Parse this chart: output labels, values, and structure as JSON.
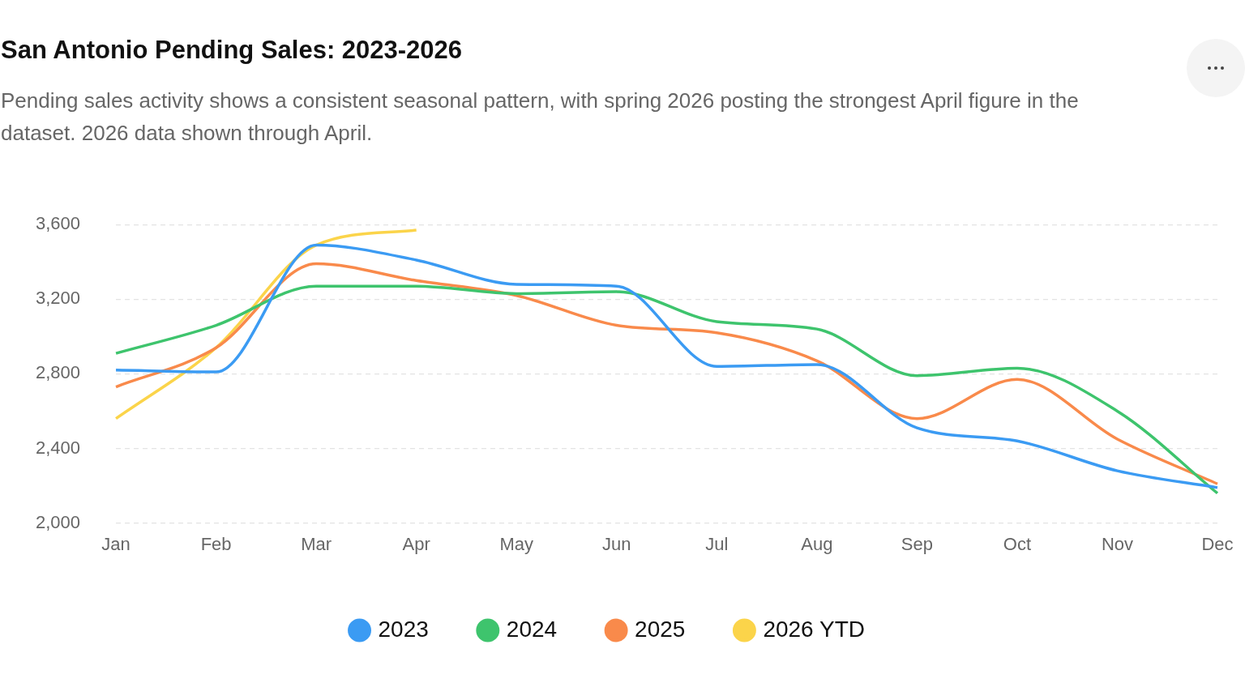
{
  "chart_data": {
    "type": "line",
    "title": "San Antonio Pending Sales: 2023-2026",
    "subtitle": "Pending sales activity shows a consistent seasonal pattern, with spring 2026 posting the strongest April figure in the dataset. 2026 data shown through April.",
    "categories": [
      "Jan",
      "Feb",
      "Mar",
      "Apr",
      "May",
      "Jun",
      "Jul",
      "Aug",
      "Sep",
      "Oct",
      "Nov",
      "Dec"
    ],
    "series": [
      {
        "name": "2023",
        "color": "#3b9bf3",
        "values": [
          2820,
          2810,
          3490,
          3410,
          3280,
          3270,
          2840,
          2850,
          2510,
          2440,
          2280,
          2190
        ]
      },
      {
        "name": "2024",
        "color": "#3ec46d",
        "values": [
          2910,
          3060,
          3270,
          3270,
          3230,
          3240,
          3080,
          3040,
          2790,
          2830,
          2600,
          2160
        ]
      },
      {
        "name": "2025",
        "color": "#f98a4b",
        "values": [
          2730,
          2940,
          3390,
          3300,
          3220,
          3060,
          3020,
          2870,
          2560,
          2770,
          2450,
          2210
        ]
      },
      {
        "name": "2026 YTD",
        "color": "#fbd44a",
        "values": [
          2560,
          2940,
          3490,
          3570,
          null,
          null,
          null,
          null,
          null,
          null,
          null,
          null
        ]
      }
    ],
    "ylim": [
      2000,
      3600
    ],
    "yticks": [
      {
        "value": 2000,
        "label": "2,000"
      },
      {
        "value": 2400,
        "label": "2,400"
      },
      {
        "value": 2800,
        "label": "2,800"
      },
      {
        "value": 3200,
        "label": "3,200"
      },
      {
        "value": 3600,
        "label": "3,600"
      }
    ],
    "grid": "y",
    "legend": "bottom",
    "marker": "none",
    "line_style": "solid"
  }
}
